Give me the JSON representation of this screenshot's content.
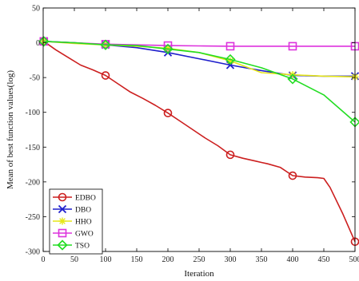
{
  "chart_data": {
    "type": "line",
    "title": "",
    "xlabel": "Iteration",
    "ylabel": "Mean of best function values(log)",
    "xlim": [
      0,
      500
    ],
    "ylim": [
      -300,
      50
    ],
    "xticks": [
      0,
      50,
      100,
      150,
      200,
      250,
      300,
      350,
      400,
      450,
      500
    ],
    "yticks": [
      50,
      0,
      -50,
      -100,
      -150,
      -200,
      -250,
      -300
    ],
    "legend_position": "bottom-left",
    "grid": false,
    "series": [
      {
        "name": "EDBO",
        "color": "#cc1f1f",
        "marker": "circle",
        "x": [
          1,
          20,
          40,
          60,
          80,
          100,
          120,
          140,
          160,
          180,
          200,
          220,
          240,
          260,
          280,
          300,
          320,
          340,
          350,
          360,
          380,
          400,
          420,
          440,
          450,
          460,
          480,
          500
        ],
        "y": [
          2,
          -10,
          -21,
          -32,
          -39,
          -47,
          -59,
          -71,
          -80,
          -90,
          -101,
          -113,
          -125,
          -137,
          -148,
          -161,
          -166,
          -170,
          -172,
          -174,
          -179,
          -191,
          -193,
          -194,
          -195,
          -208,
          -245,
          -286
        ],
        "marker_x": [
          1,
          100,
          200,
          300,
          400,
          500
        ],
        "marker_y": [
          2,
          -47,
          -101,
          -161,
          -191,
          -286
        ]
      },
      {
        "name": "DBO",
        "color": "#1f1fcc",
        "marker": "x",
        "x": [
          1,
          50,
          100,
          150,
          200,
          250,
          300,
          350,
          400,
          450,
          500
        ],
        "y": [
          2,
          0,
          -3,
          -7,
          -14,
          -23,
          -32,
          -40,
          -47,
          -48,
          -48
        ],
        "marker_x": [
          1,
          100,
          200,
          300,
          400,
          500
        ],
        "marker_y": [
          2,
          -3,
          -14,
          -32,
          -47,
          -48
        ]
      },
      {
        "name": "HHO",
        "color": "#e6e619",
        "marker": "asterisk",
        "x": [
          1,
          50,
          100,
          150,
          200,
          250,
          300,
          350,
          400,
          450,
          500
        ],
        "y": [
          2,
          -1,
          -3,
          -5,
          -8,
          -14,
          -26,
          -43,
          -46,
          -48,
          -49
        ],
        "marker_x": [
          1,
          100,
          200,
          300,
          400,
          500
        ],
        "marker_y": [
          2,
          -3,
          -8,
          -26,
          -46,
          -49
        ]
      },
      {
        "name": "GWO",
        "color": "#dd33dd",
        "marker": "square",
        "x": [
          1,
          50,
          100,
          150,
          200,
          250,
          300,
          350,
          400,
          450,
          500
        ],
        "y": [
          2,
          0,
          -2,
          -3,
          -4,
          -4.5,
          -5,
          -5,
          -5,
          -5,
          -5
        ],
        "marker_x": [
          1,
          100,
          200,
          300,
          400,
          500
        ],
        "marker_y": [
          2,
          -2,
          -4,
          -5,
          -5,
          -5
        ]
      },
      {
        "name": "TSO",
        "color": "#22dd22",
        "marker": "diamond",
        "x": [
          1,
          50,
          100,
          150,
          200,
          250,
          300,
          350,
          400,
          450,
          500
        ],
        "y": [
          2,
          0,
          -3,
          -4,
          -9,
          -14,
          -24,
          -36,
          -52,
          -75,
          -114
        ],
        "marker_x": [
          1,
          100,
          200,
          300,
          400,
          500
        ],
        "marker_y": [
          2,
          -3,
          -9,
          -24,
          -52,
          -114
        ]
      }
    ]
  }
}
